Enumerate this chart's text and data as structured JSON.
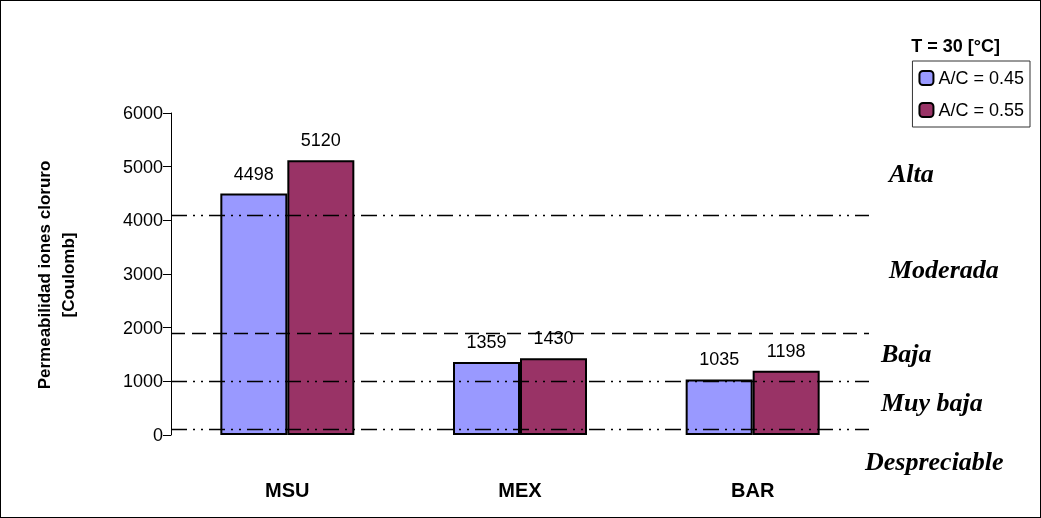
{
  "chart_data": {
    "type": "bar",
    "ylabel": "Permeabilidad iones cloruro\n[Coulomb]",
    "legend_title": "T = 30 [°C]",
    "categories": [
      "MSU",
      "MEX",
      "BAR"
    ],
    "series": [
      {
        "name": "A/C = 0.45",
        "color": "#9999ff",
        "values": [
          4498,
          1359,
          1035
        ]
      },
      {
        "name": "A/C = 0.55",
        "color": "#993366",
        "values": [
          5120,
          1430,
          1198
        ]
      }
    ],
    "ylim": [
      0,
      6000
    ],
    "yticks": [
      0,
      1000,
      2000,
      3000,
      4000,
      5000,
      6000
    ],
    "grid": false,
    "legend": "top right",
    "data_labels": true,
    "ref_lines": [
      {
        "axis": "y",
        "value": 4100,
        "line_style": "dashdot"
      },
      {
        "axis": "y",
        "value": 1900,
        "line_style": "dashed"
      },
      {
        "axis": "y",
        "value": 1000,
        "line_style": "dashdot"
      },
      {
        "axis": "y",
        "value": 100,
        "line_style": "dashdot"
      }
    ],
    "annotations": [
      "Alta",
      "Moderada",
      "Baja",
      "Muy baja",
      "Despreciable"
    ]
  }
}
